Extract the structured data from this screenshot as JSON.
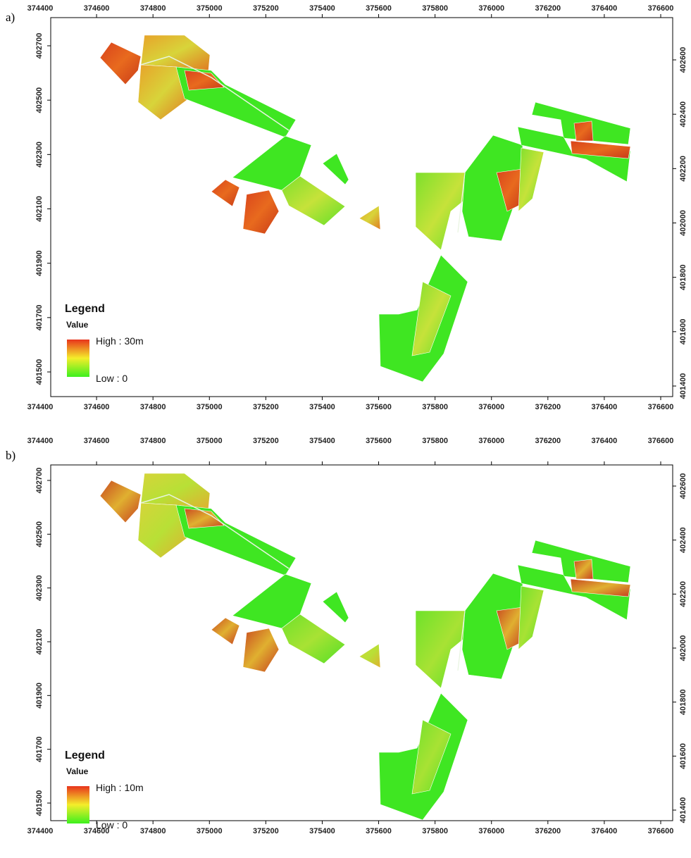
{
  "panels": [
    {
      "label": "a)",
      "xticks": [
        374400,
        374600,
        374800,
        375000,
        375200,
        375400,
        375600,
        375800,
        376000,
        376200,
        376400,
        376600
      ],
      "yticks_left": [
        402700,
        402500,
        402300,
        402100,
        401900,
        401700,
        401500
      ],
      "yticks_right": [
        402600,
        402400,
        402200,
        402000,
        401800,
        401600,
        401400
      ],
      "legend": {
        "title": "Legend",
        "subtitle": "Value",
        "high": "High : 30m",
        "low": "Low : 0"
      }
    },
    {
      "label": "b)",
      "xticks": [
        374400,
        374600,
        374800,
        375000,
        375200,
        375400,
        375600,
        375800,
        376000,
        376200,
        376400,
        376600
      ],
      "yticks_left": [
        402700,
        402500,
        402300,
        402100,
        401900,
        401700,
        401500
      ],
      "yticks_right": [
        402600,
        402400,
        402200,
        402000,
        401800,
        401600,
        401400
      ],
      "legend": {
        "title": "Legend",
        "subtitle": "Value",
        "high": "High : 10m",
        "low": "Low : 0"
      }
    }
  ]
}
